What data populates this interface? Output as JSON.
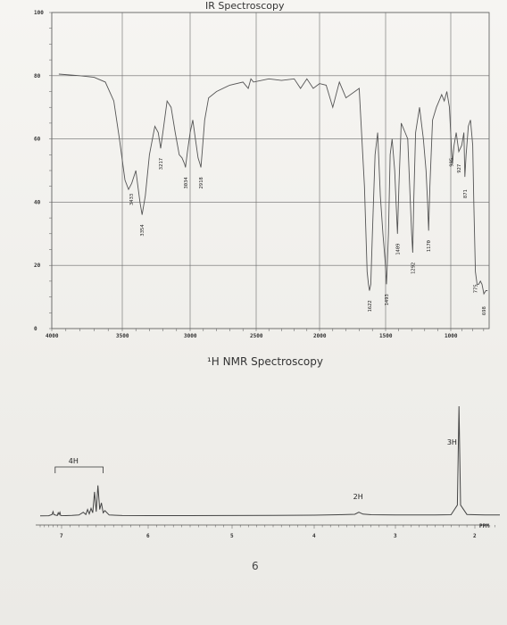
{
  "chart_data": [
    {
      "type": "line",
      "title": "IR Spectroscopy",
      "xlabel": "",
      "ylabel": "",
      "xlim": [
        4000,
        650
      ],
      "ylim": [
        0,
        100
      ],
      "x_ticks": [
        "4000",
        "3500",
        "3000",
        "2500",
        "2000",
        "1500",
        "1000"
      ],
      "y_ticks": [
        "0",
        "20",
        "40",
        "60",
        "80",
        "100"
      ],
      "grid": true,
      "series": [
        {
          "x": [
            3950,
            3800,
            3700,
            3620,
            3560,
            3520,
            3480,
            3454,
            3430,
            3400,
            3370,
            3354,
            3330,
            3300,
            3260,
            3235,
            3217,
            3195,
            3170,
            3140,
            3110,
            3080,
            3060,
            3040,
            3034,
            3020,
            3000,
            2980,
            2960,
            2940,
            2925,
            2918,
            2905,
            2890,
            2860,
            2800,
            2700,
            2600,
            2560,
            2540,
            2520,
            2400,
            2300,
            2200,
            2150,
            2100,
            2050,
            2000,
            1950,
            1900,
            1850,
            1800,
            1700,
            1660,
            1640,
            1630,
            1622,
            1612,
            1600,
            1580,
            1560,
            1540,
            1520,
            1505,
            1493,
            1478,
            1465,
            1450,
            1430,
            1420,
            1409,
            1398,
            1380,
            1350,
            1330,
            1310,
            1300,
            1292,
            1284,
            1270,
            1240,
            1210,
            1190,
            1178,
            1170,
            1160,
            1140,
            1110,
            1090,
            1070,
            1050,
            1030,
            1010,
            995,
            985,
            970,
            950,
            927,
            900,
            880,
            871,
            860,
            840,
            820,
            800,
            790,
            775,
            760,
            745,
            730,
            715,
            698,
            680,
            665
          ],
          "y": [
            80.5,
            80,
            79.5,
            78,
            72,
            60,
            47,
            44,
            46,
            50,
            40,
            36,
            42,
            55,
            64,
            62,
            57,
            64,
            72,
            70,
            62,
            55,
            54,
            52,
            51,
            56,
            62,
            66,
            60,
            54,
            52,
            51,
            58,
            66,
            73,
            75,
            77,
            78,
            76,
            79,
            78,
            79,
            78.5,
            79,
            76,
            79,
            76,
            77.5,
            77,
            70,
            78,
            73,
            76,
            45,
            18,
            14,
            12,
            14,
            30,
            55,
            62,
            42,
            30,
            22,
            14,
            30,
            55,
            60,
            50,
            40,
            30,
            45,
            65,
            62,
            60,
            40,
            30,
            24,
            40,
            62,
            70,
            60,
            50,
            40,
            31,
            45,
            66,
            70,
            72,
            74,
            72,
            75,
            70,
            58,
            52,
            58,
            62,
            56,
            58,
            62,
            48,
            55,
            64,
            66,
            58,
            40,
            18,
            14,
            14,
            15,
            14,
            11,
            12,
            12
          ]
        }
      ],
      "annotations": [
        "3433",
        "3354",
        "3217",
        "3034",
        "2918",
        "1622",
        "1493",
        "1409",
        "1292",
        "1170",
        "995",
        "927",
        "871",
        "775",
        "698"
      ]
    },
    {
      "type": "line",
      "title": "¹H NMR Spectroscopy",
      "xlabel": "PPM",
      "ylabel": "",
      "xlim": [
        7.5,
        1.5
      ],
      "x_ticks": [
        "7",
        "6",
        "5",
        "4",
        "3",
        "2"
      ],
      "series": [
        {
          "x": [
            7.5,
            7.3,
            7.22,
            7.2,
            7.18,
            7.1,
            7.08,
            7.06,
            7.04,
            7.02,
            6.95,
            6.88,
            6.8,
            6.75,
            6.72,
            6.7,
            6.68,
            6.66,
            6.64,
            6.62,
            6.6,
            6.58,
            6.56,
            6.54,
            6.52,
            6.5,
            6.45,
            6.3,
            6.0,
            5.5,
            5.0,
            4.5,
            4.0,
            3.7,
            3.5,
            3.45,
            3.4,
            3.3,
            3.0,
            2.5,
            2.3,
            2.22,
            2.2,
            2.18,
            2.1,
            2.0,
            1.8,
            1.5
          ],
          "y": [
            0.2,
            0.3,
            1.5,
            4,
            1.2,
            0.5,
            3,
            1.5,
            3.5,
            0.5,
            0.4,
            0.6,
            1,
            3.5,
            1.5,
            6,
            2,
            7,
            3,
            22,
            4,
            28,
            6,
            12,
            3,
            5,
            1,
            0.5,
            0.4,
            0.4,
            0.5,
            0.6,
            0.8,
            1.2,
            1.6,
            3.5,
            1.8,
            1.2,
            1.0,
            1.0,
            1.2,
            10,
            100,
            10,
            1.5,
            1.2,
            1.0,
            1.0
          ]
        }
      ],
      "integrations": [
        {
          "label": "4H"
        },
        {
          "label": "2H"
        },
        {
          "label": "3H"
        }
      ]
    }
  ],
  "page": {
    "number": "6"
  }
}
